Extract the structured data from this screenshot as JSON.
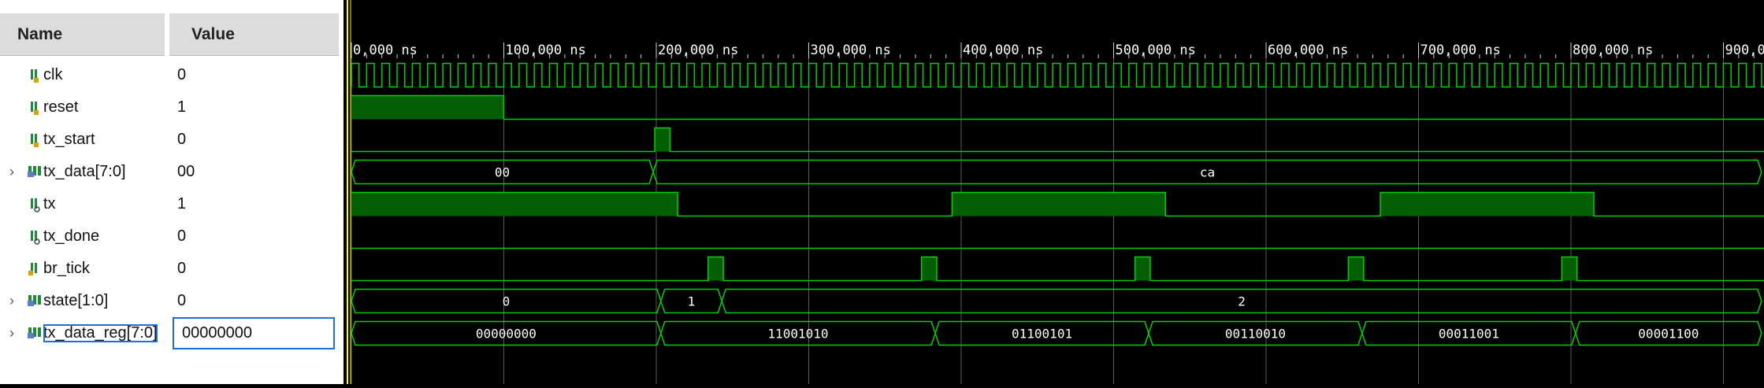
{
  "columns": {
    "name": "Name",
    "value": "Value"
  },
  "time_unit": "ns",
  "timeline": {
    "ticks": [
      "0,000 ns",
      "100,000 ns",
      "200,000 ns",
      "300,000 ns",
      "400,000 ns",
      "500,000 ns",
      "600,000 ns",
      "700,000 ns",
      "800,000 ns",
      "900,0"
    ]
  },
  "signals": [
    {
      "name": "clk",
      "value": "0",
      "bus": false,
      "icon": "bit-input-icon"
    },
    {
      "name": "reset",
      "value": "1",
      "bus": false,
      "icon": "bit-input-icon"
    },
    {
      "name": "tx_start",
      "value": "0",
      "bus": false,
      "icon": "bit-input-icon"
    },
    {
      "name": "tx_data[7:0]",
      "value": "00",
      "bus": true,
      "icon": "bus-input-icon"
    },
    {
      "name": "tx",
      "value": "1",
      "bus": false,
      "icon": "bit-output-icon"
    },
    {
      "name": "tx_done",
      "value": "0",
      "bus": false,
      "icon": "bit-output-icon"
    },
    {
      "name": "br_tick",
      "value": "0",
      "bus": false,
      "icon": "bit-internal-icon"
    },
    {
      "name": "state[1:0]",
      "value": "0",
      "bus": true,
      "icon": "bus-internal-icon"
    },
    {
      "name": "tx_data_reg[7:0]",
      "value": "00000000",
      "bus": true,
      "icon": "bus-internal-icon",
      "selected": true
    }
  ],
  "waves": {
    "clk_period_ns": 10,
    "reset_high": [
      [
        0,
        100
      ]
    ],
    "tx_start_high": [
      [
        199,
        209
      ]
    ],
    "tx_data_segments": [
      {
        "start": 0,
        "end": 198,
        "label": "00"
      },
      {
        "start": 198,
        "end": 925,
        "label": "ca"
      }
    ],
    "tx_high": [
      [
        0,
        214
      ],
      [
        394,
        534
      ],
      [
        675,
        815
      ]
    ],
    "tx_done_high": [],
    "br_tick_high": [
      [
        234,
        244
      ],
      [
        374,
        384
      ],
      [
        514,
        524
      ],
      [
        654,
        664
      ],
      [
        794,
        804
      ]
    ],
    "state_segments": [
      {
        "start": 0,
        "end": 203,
        "label": "0"
      },
      {
        "start": 203,
        "end": 243,
        "label": "1"
      },
      {
        "start": 243,
        "end": 925,
        "label": "2"
      }
    ],
    "tx_data_reg_segments": [
      {
        "start": 0,
        "end": 203,
        "label": "00000000"
      },
      {
        "start": 203,
        "end": 383,
        "label": "11001010"
      },
      {
        "start": 383,
        "end": 523,
        "label": "01100101"
      },
      {
        "start": 523,
        "end": 663,
        "label": "00110010"
      },
      {
        "start": 663,
        "end": 803,
        "label": "00011001"
      },
      {
        "start": 803,
        "end": 925,
        "label": "00001100"
      }
    ]
  },
  "colors": {
    "wave_green": "#00d000",
    "fill_green": "#045e04",
    "cursor_yellow": "#ffff00",
    "grid": "#5a5a5a",
    "tick_text": "#ffffff",
    "selection_blue": "#1e6fd9"
  }
}
